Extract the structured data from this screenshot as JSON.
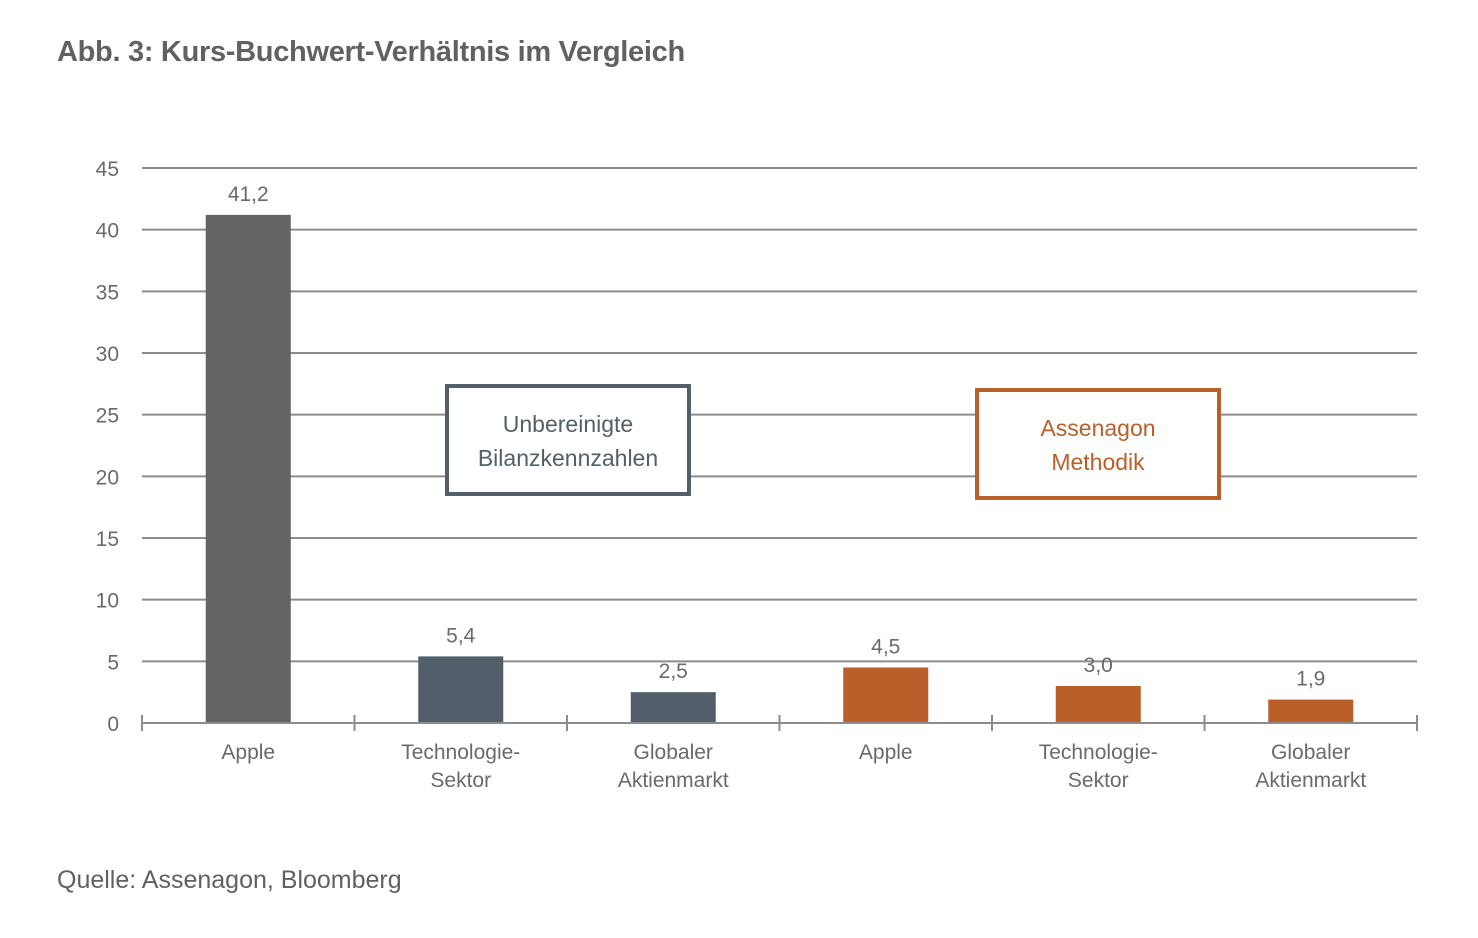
{
  "chart_data": {
    "type": "bar",
    "title": "Abb. 3: Kurs-Buchwert-Verhältnis im Vergleich",
    "xlabel": "",
    "ylabel": "",
    "ylim": [
      0,
      45
    ],
    "yticks": [
      0,
      5,
      10,
      15,
      20,
      25,
      30,
      35,
      40,
      45
    ],
    "ytick_labels": [
      "0",
      "5",
      "10",
      "15",
      "20",
      "25",
      "30",
      "35",
      "40",
      "45"
    ],
    "grid": true,
    "categories": [
      [
        "Apple"
      ],
      [
        "Technologie-",
        "Sektor"
      ],
      [
        "Globaler",
        "Aktienmarkt"
      ],
      [
        "Apple"
      ],
      [
        "Technologie-",
        "Sektor"
      ],
      [
        "Globaler",
        "Aktienmarkt"
      ]
    ],
    "values": [
      41.2,
      5.4,
      2.5,
      4.5,
      3.0,
      1.9
    ],
    "value_labels": [
      "41,2",
      "5,4",
      "2,5",
      "4,5",
      "3,0",
      "1,9"
    ],
    "bar_colors": [
      "#646464",
      "#525f6a",
      "#525f6a",
      "#bb5f2a",
      "#bb5f2a",
      "#bb5f2a"
    ],
    "groups": [
      {
        "name": "Unbereinigte Bilanzkennzahlen",
        "lines": [
          "Unbereinigte",
          "Bilanzkennzahlen"
        ],
        "color": "#525f6a",
        "bars": [
          0,
          1,
          2
        ]
      },
      {
        "name": "Assenagon Methodik",
        "lines": [
          "Assenagon",
          "Methodik"
        ],
        "color": "#bb5f2a",
        "bars": [
          3,
          4,
          5
        ]
      }
    ],
    "source": "Quelle: Assenagon, Bloomberg"
  },
  "colors": {
    "grid": "#8c8c8c",
    "axis": "#8c8c8c",
    "text": "#6a6a6a"
  }
}
